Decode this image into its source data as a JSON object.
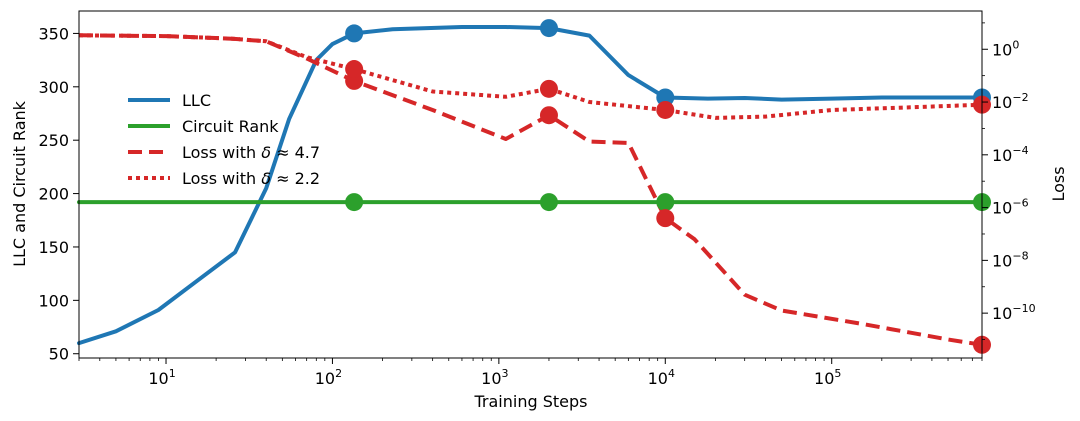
{
  "chart_data": {
    "type": "line",
    "xscale": "log",
    "xlim": [
      3,
      800000
    ],
    "xlabel": "Training Steps",
    "ylabel_left": "LLC and Circuit Rank",
    "ylabel_right": "Loss",
    "ylim_left": [
      46,
      371
    ],
    "ylim_right_log10": [
      -11.7,
      1.45
    ],
    "x_ticks": [
      {
        "value": 10,
        "base": "10",
        "exp": "1"
      },
      {
        "value": 100,
        "base": "10",
        "exp": "2"
      },
      {
        "value": 1000,
        "base": "10",
        "exp": "3"
      },
      {
        "value": 10000,
        "base": "10",
        "exp": "4"
      },
      {
        "value": 100000,
        "base": "10",
        "exp": "5"
      }
    ],
    "y_left_ticks": [
      {
        "value": 50,
        "label": "50"
      },
      {
        "value": 100,
        "label": "100"
      },
      {
        "value": 150,
        "label": "150"
      },
      {
        "value": 200,
        "label": "200"
      },
      {
        "value": 250,
        "label": "250"
      },
      {
        "value": 300,
        "label": "300"
      },
      {
        "value": 350,
        "label": "350"
      }
    ],
    "y_right_ticks": [
      {
        "value": 0,
        "base": "10",
        "exp": "0"
      },
      {
        "value": -2,
        "base": "10",
        "exp": "−2"
      },
      {
        "value": -4,
        "base": "10",
        "exp": "−4"
      },
      {
        "value": -6,
        "base": "10",
        "exp": "−6"
      },
      {
        "value": -8,
        "base": "10",
        "exp": "−8"
      },
      {
        "value": -10,
        "base": "10",
        "exp": "−10"
      }
    ],
    "legend_position": "upper-left",
    "series": [
      {
        "name": "LLC",
        "legend_label": "LLC",
        "axis": "left",
        "color": "#1f77b4",
        "style": "solid",
        "points": [
          [
            3,
            60
          ],
          [
            5,
            71
          ],
          [
            9,
            91
          ],
          [
            15,
            117
          ],
          [
            26,
            145
          ],
          [
            40,
            205
          ],
          [
            55,
            270
          ],
          [
            80,
            325
          ],
          [
            100,
            340
          ],
          [
            135,
            350
          ],
          [
            230,
            354
          ],
          [
            600,
            356
          ],
          [
            1100,
            356
          ],
          [
            2000,
            355
          ],
          [
            3500,
            348
          ],
          [
            6000,
            311
          ],
          [
            10000,
            290
          ],
          [
            18000,
            289
          ],
          [
            30000,
            289.5
          ],
          [
            50000,
            288
          ],
          [
            100000,
            289
          ],
          [
            200000,
            290
          ],
          [
            500000,
            290
          ],
          [
            800000,
            290
          ]
        ],
        "markers": [
          [
            135,
            350
          ],
          [
            2000,
            355
          ],
          [
            10000,
            290
          ],
          [
            800000,
            290
          ]
        ]
      },
      {
        "name": "Circuit Rank",
        "legend_label": "Circuit Rank",
        "axis": "left",
        "color": "#2ca02c",
        "style": "solid",
        "points": [
          [
            3,
            192
          ],
          [
            800000,
            192
          ]
        ],
        "markers": [
          [
            135,
            192
          ],
          [
            2000,
            192
          ],
          [
            10000,
            192
          ],
          [
            800000,
            192
          ]
        ]
      },
      {
        "name": "Loss δ≈4.7",
        "legend_prefix": "Loss with ",
        "legend_symbol": "δ",
        "legend_suffix": " ≈ 4.7",
        "axis": "right",
        "color": "#d62728",
        "style": "dashed",
        "points_log10": [
          [
            3,
            0.53
          ],
          [
            10,
            0.5
          ],
          [
            25,
            0.4
          ],
          [
            40,
            0.3
          ],
          [
            70,
            -0.35
          ],
          [
            135,
            -1.2
          ],
          [
            400,
            -2.3
          ],
          [
            1100,
            -3.4
          ],
          [
            2000,
            -2.5
          ],
          [
            3500,
            -3.5
          ],
          [
            6000,
            -3.55
          ],
          [
            10000,
            -6.4
          ],
          [
            15000,
            -7.2
          ],
          [
            30000,
            -9.3
          ],
          [
            50000,
            -9.9
          ],
          [
            150000,
            -10.4
          ],
          [
            500000,
            -11.0
          ],
          [
            800000,
            -11.2
          ]
        ],
        "markers_log10": [
          [
            135,
            -1.2
          ],
          [
            2000,
            -2.5
          ],
          [
            10000,
            -6.4
          ],
          [
            800000,
            -11.2
          ]
        ]
      },
      {
        "name": "Loss δ≈2.2",
        "legend_prefix": "Loss with ",
        "legend_symbol": "δ",
        "legend_suffix": " ≈ 2.2",
        "axis": "right",
        "color": "#d62728",
        "style": "dotted",
        "points_log10": [
          [
            3,
            0.53
          ],
          [
            10,
            0.5
          ],
          [
            25,
            0.4
          ],
          [
            40,
            0.3
          ],
          [
            70,
            -0.3
          ],
          [
            135,
            -0.75
          ],
          [
            400,
            -1.6
          ],
          [
            1100,
            -1.8
          ],
          [
            2000,
            -1.5
          ],
          [
            3500,
            -2.0
          ],
          [
            10000,
            -2.3
          ],
          [
            20000,
            -2.6
          ],
          [
            40000,
            -2.55
          ],
          [
            100000,
            -2.3
          ],
          [
            300000,
            -2.2
          ],
          [
            800000,
            -2.1
          ]
        ],
        "markers_log10": [
          [
            135,
            -0.75
          ],
          [
            2000,
            -1.5
          ],
          [
            10000,
            -2.3
          ],
          [
            800000,
            -2.1
          ]
        ]
      }
    ]
  }
}
